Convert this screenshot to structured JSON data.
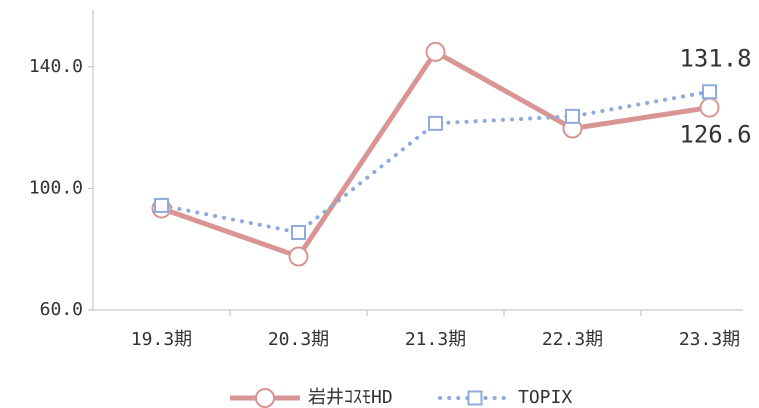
{
  "chart_data": {
    "type": "line",
    "categories": [
      "19.3期",
      "20.3期",
      "21.3期",
      "22.3期",
      "23.3期"
    ],
    "series": [
      {
        "name": "岩井ｺｽﾓHD",
        "color": "#d99594",
        "marker": "circle",
        "values": [
          93.4,
          77.6,
          144.9,
          119.7,
          126.6
        ],
        "value_labels": [
          null,
          null,
          null,
          null,
          "126.6"
        ]
      },
      {
        "name": "TOPIX",
        "color": "#8faadc",
        "marker": "square",
        "dash": "dotted",
        "values": [
          94.4,
          85.5,
          121.4,
          123.7,
          131.8
        ],
        "value_labels": [
          null,
          null,
          null,
          null,
          "131.8"
        ]
      }
    ],
    "ylim": [
      60,
      160
    ],
    "yticks": [
      {
        "value": 60,
        "label": "60.0"
      },
      {
        "value": 100,
        "label": "100.0"
      },
      {
        "value": 140,
        "label": "140.0"
      }
    ],
    "legend": "bottom"
  }
}
